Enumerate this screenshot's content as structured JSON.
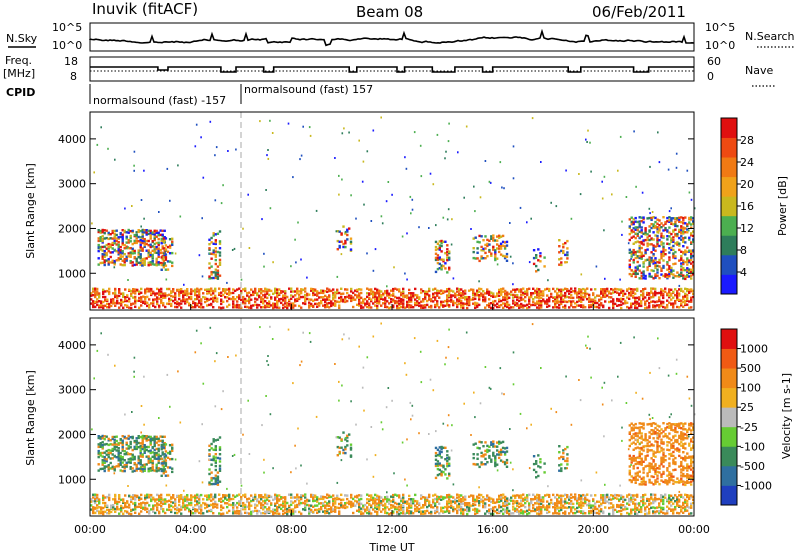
{
  "header": {
    "station": "Inuvik (fitACF)",
    "beam": "Beam 08",
    "date": "06/Feb/2011"
  },
  "noise_panel": {
    "left_label": "N.Sky",
    "right_label": "N.Search",
    "left_ticks": [
      "10^5",
      "10^0"
    ],
    "right_ticks": [
      "10^5",
      "10^0"
    ]
  },
  "freq_panel": {
    "left_label_1": "Freq.",
    "left_label_2": "[MHz]",
    "right_label": "Nave",
    "left_ticks": [
      "18",
      "8"
    ],
    "right_ticks": [
      "60",
      "0"
    ]
  },
  "cpid": {
    "label": "CPID",
    "segment_1": "normalsound (fast) -157",
    "segment_2": "normalsound (fast) 157"
  },
  "colors": {
    "power_scale": [
      "#1a1aff",
      "#1f4fbf",
      "#2e7d5b",
      "#4caf50",
      "#c9b81e",
      "#f0a21a",
      "#f07a14",
      "#ee4a12",
      "#e01010"
    ],
    "velocity_scale": [
      "#1f3fbf",
      "#2f6fa0",
      "#3a8a5a",
      "#66cc33",
      "#bbbbbb",
      "#f0b020",
      "#f08a18",
      "#f05a14",
      "#e01010"
    ]
  },
  "chart_data": [
    {
      "type": "heatmap",
      "name": "power",
      "xlabel": "",
      "ylabel": "Slant Range [km]",
      "x_range_hours": [
        0,
        24
      ],
      "ylim": [
        180,
        4600
      ],
      "yticks": [
        "1000",
        "2000",
        "3000",
        "4000"
      ],
      "colorbar": {
        "label": "Power [dB]",
        "ticks": [
          "4",
          "8",
          "12",
          "16",
          "20",
          "24",
          "28"
        ],
        "range": [
          0,
          30
        ]
      }
    },
    {
      "type": "heatmap",
      "name": "velocity",
      "xlabel": "Time UT",
      "ylabel": "Slant Range [km]",
      "x_range_hours": [
        0,
        24
      ],
      "ylim": [
        180,
        4600
      ],
      "yticks": [
        "1000",
        "2000",
        "3000",
        "4000"
      ],
      "xticks": [
        "00:00",
        "04:00",
        "08:00",
        "12:00",
        "16:00",
        "20:00",
        "00:00"
      ],
      "colorbar": {
        "label": "Velocity [m s-1]",
        "ticks": [
          "1000",
          "500",
          "100",
          "25",
          "-25",
          "-100",
          "-500",
          "-1000"
        ]
      }
    }
  ]
}
